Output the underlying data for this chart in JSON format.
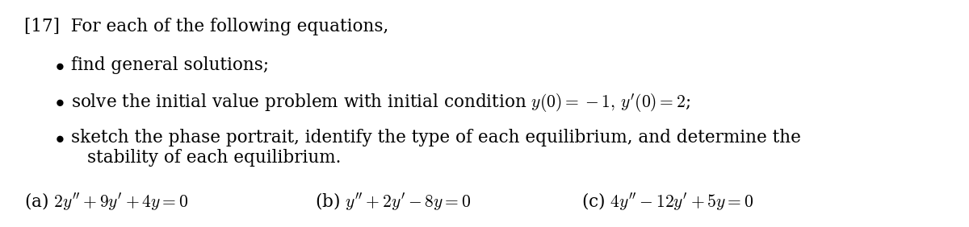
{
  "background_color": "#ffffff",
  "fig_width": 12.0,
  "fig_height": 2.82,
  "dpi": 100,
  "problem_number": "[17]",
  "intro_text": "For each of the following equations,",
  "bullet1": "find general solutions;",
  "bullet2": "solve the initial value problem with initial condition $y(0) = -1,\\, y'(0) = 2$;",
  "bullet3a": "sketch the phase portrait, identify the type of each equilibrium, and determine the",
  "bullet3b": "stability of each equilibrium.",
  "eq_a": "(a) $2y'' + 9y' + 4y = 0$",
  "eq_b": "(b) $y'' + 2y' - 8y = 0$",
  "eq_c": "(c) $4y'' - 12y' + 5y = 0$",
  "font_size": 15.5,
  "text_color": "#000000"
}
